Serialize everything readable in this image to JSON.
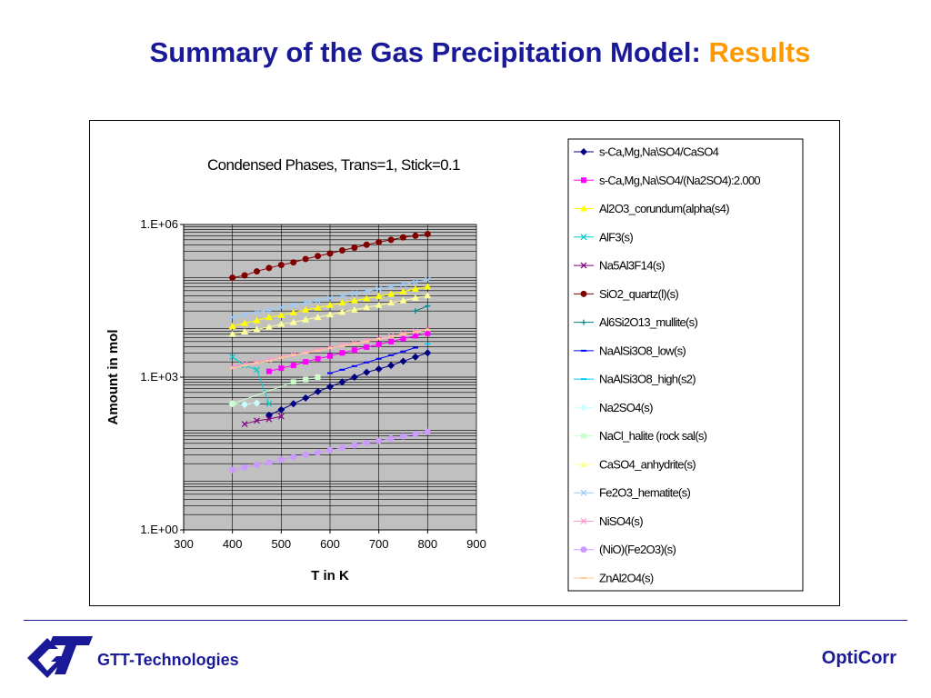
{
  "slide": {
    "title": "Summary of the Gas Precipitation Model: ",
    "title_accent": "Results",
    "company": "GTT-Technologies",
    "product": "OptiCorr"
  },
  "colors": {
    "title": "#1a1a99",
    "accent": "#ff9900",
    "plot_bg": "#c0c0c0"
  },
  "chart_data": {
    "type": "line",
    "title": "Condensed Phases, Trans=1, Stick=0.1",
    "xlabel": "T in K",
    "ylabel": "Amount in mol",
    "xlim": [
      300,
      900
    ],
    "xticks": [
      300,
      400,
      500,
      600,
      700,
      800,
      900
    ],
    "y_scale": "log",
    "ylim": [
      1,
      1000000
    ],
    "ytick_values": [
      1,
      1000,
      1000000
    ],
    "ytick_labels": [
      "1.E+00",
      "1.E+03",
      "1.E+06"
    ],
    "grid": true,
    "legend_position": "right",
    "series": [
      {
        "name": "s-Ca,Mg,Na\\SO4/CaSO4",
        "color": "#000080",
        "marker": "diamond",
        "x": [
          475,
          500,
          525,
          550,
          575,
          600,
          625,
          650,
          675,
          700,
          725,
          750,
          775,
          800
        ],
        "y": [
          180,
          230,
          300,
          390,
          520,
          650,
          800,
          1000,
          1250,
          1450,
          1700,
          2050,
          2500,
          3000
        ]
      },
      {
        "name": "s-Ca,Mg,Na\\SO4/(Na2SO4):2.000",
        "color": "#ff00ff",
        "marker": "square",
        "x": [
          475,
          500,
          525,
          550,
          575,
          600,
          625,
          650,
          675,
          700,
          725,
          750,
          775,
          800
        ],
        "y": [
          1300,
          1500,
          1700,
          2000,
          2300,
          2600,
          3000,
          3400,
          3900,
          4400,
          5000,
          5700,
          6500,
          7300
        ]
      },
      {
        "name": "Al2O3_corundum(alpha(s4)",
        "color": "#ffff00",
        "marker": "triangle",
        "x": [
          400,
          425,
          450,
          475,
          500,
          525,
          550,
          575,
          600,
          625,
          650,
          675,
          700,
          725,
          750,
          775,
          800
        ],
        "y": [
          10000,
          11500,
          13000,
          15000,
          16500,
          18500,
          21000,
          23000,
          26000,
          29000,
          32000,
          35000,
          39000,
          43000,
          48000,
          54000,
          60000
        ]
      },
      {
        "name": "AlF3(s)",
        "color": "#00cccc",
        "marker": "x",
        "x": [
          400,
          425,
          450,
          475
        ],
        "y": [
          2500,
          1700,
          1400,
          300
        ]
      },
      {
        "name": "Na5Al3F14(s)",
        "color": "#800080",
        "marker": "x",
        "x": [
          425,
          450,
          475,
          500
        ],
        "y": [
          120,
          140,
          150,
          170
        ]
      },
      {
        "name": "SiO2_quartz(l)(s)",
        "color": "#800000",
        "marker": "circle",
        "x": [
          400,
          425,
          450,
          475,
          500,
          525,
          550,
          575,
          600,
          625,
          650,
          675,
          700,
          725,
          750,
          775,
          800
        ],
        "y": [
          90000,
          100000,
          120000,
          140000,
          160000,
          180000,
          210000,
          240000,
          270000,
          310000,
          350000,
          400000,
          450000,
          500000,
          560000,
          600000,
          650000
        ]
      },
      {
        "name": "Al6Si2O13_mullite(s)",
        "color": "#008080",
        "marker": "plus",
        "x": [
          775,
          800
        ],
        "y": [
          20000,
          25000
        ]
      },
      {
        "name": "NaAlSi3O8_low(s)",
        "color": "#0000ff",
        "marker": "dash",
        "x": [
          600,
          625,
          650,
          675,
          700,
          725,
          750,
          775
        ],
        "y": [
          1200,
          1400,
          1650,
          1950,
          2300,
          2700,
          3200,
          3800
        ]
      },
      {
        "name": "NaAlSi3O8_high(s2)",
        "color": "#00ccff",
        "marker": "dash",
        "x": [
          800
        ],
        "y": [
          4500
        ]
      },
      {
        "name": "Na2SO4(s)",
        "color": "#ccffff",
        "marker": "diamond",
        "x": [
          400,
          425,
          450
        ],
        "y": [
          300,
          290,
          310
        ]
      },
      {
        "name": "NaCl_halite (rock sal(s)",
        "color": "#ccffcc",
        "marker": "square",
        "x": [
          400,
          525,
          550,
          575
        ],
        "y": [
          300,
          800,
          900,
          1000
        ]
      },
      {
        "name": "CaSO4_anhydrite(s)",
        "color": "#ffff99",
        "marker": "triangle",
        "x": [
          400,
          425,
          450,
          475,
          500,
          525,
          550,
          575,
          600,
          625,
          650,
          675,
          700,
          725,
          750,
          775,
          800
        ],
        "y": [
          7000,
          7800,
          8700,
          9700,
          11000,
          12000,
          13500,
          15000,
          17000,
          19000,
          21000,
          23500,
          26000,
          29000,
          32000,
          36000,
          40000
        ]
      },
      {
        "name": "Fe2O3_hematite(s)",
        "color": "#99ccff",
        "marker": "x",
        "x": [
          400,
          425,
          450,
          475,
          500,
          525,
          550,
          575,
          600,
          625,
          650,
          675,
          700,
          725,
          750,
          775,
          800
        ],
        "y": [
          15000,
          17000,
          19000,
          21000,
          23500,
          26000,
          29000,
          32000,
          35500,
          39500,
          44000,
          49000,
          54000,
          60000,
          67000,
          74000,
          82000
        ]
      },
      {
        "name": "NiSO4(s)",
        "color": "#ff99cc",
        "marker": "x",
        "x": [
          400,
          425,
          450,
          475,
          500,
          525,
          550,
          575,
          600,
          625,
          650,
          675,
          700,
          725,
          750,
          775,
          800
        ],
        "y": [
          1600,
          1800,
          2000,
          2200,
          2500,
          2800,
          3100,
          3450,
          3850,
          4250,
          4700,
          5200,
          5800,
          6400,
          7100,
          7900,
          8800
        ]
      },
      {
        "name": "(NiO)(Fe2O3)(s)",
        "color": "#cc99ff",
        "marker": "circle",
        "x": [
          400,
          425,
          450,
          475,
          500,
          525,
          550,
          575,
          600,
          625,
          650,
          675,
          700,
          725,
          750,
          775,
          800
        ],
        "y": [
          15,
          17,
          19,
          21,
          24,
          27,
          30,
          33,
          37,
          41,
          46,
          51,
          56,
          62,
          69,
          76,
          85
        ]
      },
      {
        "name": "ZnAl2O4(s)",
        "color": "#ffcc99",
        "marker": "dash",
        "x": [
          400,
          425,
          450,
          475,
          500,
          525,
          550,
          575,
          600,
          625,
          650,
          675,
          700,
          725,
          750,
          775,
          800
        ],
        "y": [
          1500,
          1700,
          1900,
          2100,
          2400,
          2700,
          3000,
          3300,
          3700,
          4100,
          4500,
          5000,
          5600,
          6200,
          6900,
          7700,
          8500
        ]
      }
    ]
  }
}
